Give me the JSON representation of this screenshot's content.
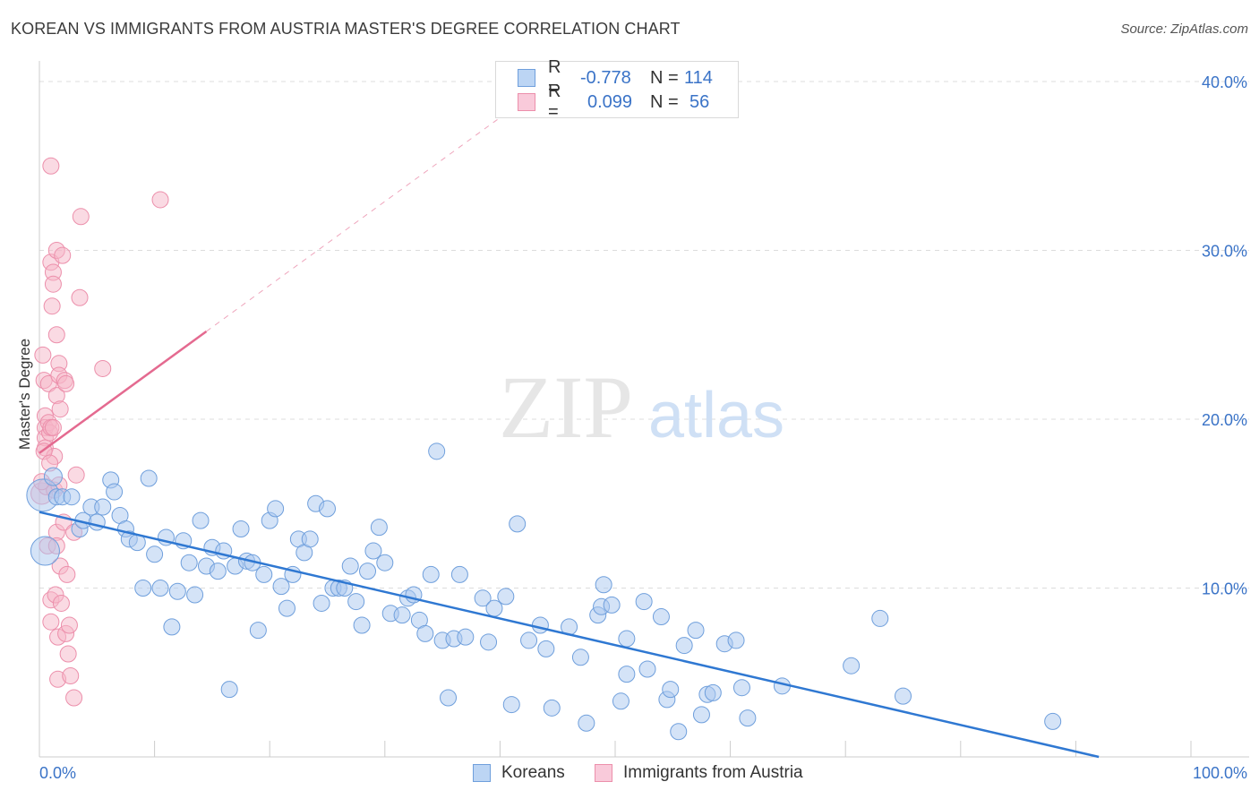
{
  "title": "KOREAN VS IMMIGRANTS FROM AUSTRIA MASTER'S DEGREE CORRELATION CHART",
  "source": "Source: ZipAtlas.com",
  "watermark": {
    "zip": "ZIP",
    "atlas": "atlas"
  },
  "colors": {
    "blue_fill": "#a9c8f0",
    "blue_stroke": "#6f9fdc",
    "blue_line": "#2f78d2",
    "pink_fill": "#f5b6c8",
    "pink_stroke": "#ec8fab",
    "pink_line": "#e46a90",
    "axis_text": "#3a73c7",
    "grid": "#dcdcdc"
  },
  "legend": {
    "rows": [
      {
        "series": "blue",
        "r_label": "R =",
        "r_value": "-0.778",
        "n_label": "N =",
        "n_value": "114"
      },
      {
        "series": "pink",
        "r_label": "R =",
        "r_value": "0.099",
        "n_label": "N =",
        "n_value": "56"
      }
    ]
  },
  "bottom_legend": [
    {
      "series": "blue",
      "label": "Koreans"
    },
    {
      "series": "pink",
      "label": "Immigrants from Austria"
    }
  ],
  "chart_data": {
    "type": "scatter",
    "xlabel": "",
    "ylabel": "Master's Degree",
    "xlim": [
      0,
      100
    ],
    "ylim": [
      0,
      40
    ],
    "x_tick_labels": [
      "0.0%",
      "100.0%"
    ],
    "y_ticks": [
      10,
      20,
      30,
      40
    ],
    "y_tick_labels": [
      "10.0%",
      "20.0%",
      "30.0%",
      "40.0%"
    ],
    "grid": true,
    "series": [
      {
        "name": "Koreans",
        "color": "#a9c8f0",
        "trend": {
          "x1": 0,
          "y1": 14.5,
          "x2": 92,
          "y2": 0.0,
          "style": "solid"
        },
        "points": [
          [
            0.3,
            15.5,
            18
          ],
          [
            0.5,
            12.2,
            16
          ],
          [
            1.2,
            16.6,
            10
          ],
          [
            1.5,
            15.4,
            9
          ],
          [
            2.0,
            15.4,
            9
          ],
          [
            2.8,
            15.4,
            9
          ],
          [
            3.5,
            13.5,
            9
          ],
          [
            3.8,
            14.0,
            9
          ],
          [
            4.5,
            14.8,
            9
          ],
          [
            5.0,
            13.9,
            9
          ],
          [
            5.5,
            14.8,
            9
          ],
          [
            6.2,
            16.4,
            9
          ],
          [
            6.5,
            15.7,
            9
          ],
          [
            7.0,
            14.3,
            9
          ],
          [
            7.5,
            13.5,
            9
          ],
          [
            7.8,
            12.9,
            9
          ],
          [
            8.5,
            12.7,
            9
          ],
          [
            9.0,
            10.0,
            9
          ],
          [
            9.5,
            16.5,
            9
          ],
          [
            10.0,
            12.0,
            9
          ],
          [
            10.5,
            10.0,
            9
          ],
          [
            11.0,
            13.0,
            9
          ],
          [
            11.5,
            7.7,
            9
          ],
          [
            12.0,
            9.8,
            9
          ],
          [
            12.5,
            12.8,
            9
          ],
          [
            13.0,
            11.5,
            9
          ],
          [
            13.5,
            9.6,
            9
          ],
          [
            14.0,
            14.0,
            9
          ],
          [
            14.5,
            11.3,
            9
          ],
          [
            15.0,
            12.4,
            9
          ],
          [
            15.5,
            11.0,
            9
          ],
          [
            16.0,
            12.2,
            9
          ],
          [
            16.5,
            4.0,
            9
          ],
          [
            17.0,
            11.3,
            9
          ],
          [
            17.5,
            13.5,
            9
          ],
          [
            18.0,
            11.6,
            9
          ],
          [
            18.5,
            11.5,
            9
          ],
          [
            19.0,
            7.5,
            9
          ],
          [
            19.5,
            10.8,
            9
          ],
          [
            20.0,
            14.0,
            9
          ],
          [
            20.5,
            14.7,
            9
          ],
          [
            21.0,
            10.1,
            9
          ],
          [
            21.5,
            8.8,
            9
          ],
          [
            22.0,
            10.8,
            9
          ],
          [
            22.5,
            12.9,
            9
          ],
          [
            23.0,
            12.1,
            9
          ],
          [
            23.5,
            12.9,
            9
          ],
          [
            24.0,
            15.0,
            9
          ],
          [
            24.5,
            9.1,
            9
          ],
          [
            25.0,
            14.7,
            9
          ],
          [
            25.5,
            10.0,
            9
          ],
          [
            26.0,
            10.0,
            9
          ],
          [
            26.5,
            10.0,
            9
          ],
          [
            27.0,
            11.3,
            9
          ],
          [
            27.5,
            9.2,
            9
          ],
          [
            28.0,
            7.8,
            9
          ],
          [
            28.5,
            11.0,
            9
          ],
          [
            29.0,
            12.2,
            9
          ],
          [
            29.5,
            13.6,
            9
          ],
          [
            30.0,
            11.5,
            9
          ],
          [
            30.5,
            8.5,
            9
          ],
          [
            31.5,
            8.4,
            9
          ],
          [
            32.0,
            9.4,
            9
          ],
          [
            32.5,
            9.6,
            9
          ],
          [
            33.0,
            8.1,
            9
          ],
          [
            33.5,
            7.3,
            9
          ],
          [
            34.0,
            10.8,
            9
          ],
          [
            34.5,
            18.1,
            9
          ],
          [
            35.0,
            6.9,
            9
          ],
          [
            35.5,
            3.5,
            9
          ],
          [
            36.0,
            7.0,
            9
          ],
          [
            36.5,
            10.8,
            9
          ],
          [
            37.0,
            7.1,
            9
          ],
          [
            38.5,
            9.4,
            9
          ],
          [
            39.0,
            6.8,
            9
          ],
          [
            39.5,
            8.8,
            9
          ],
          [
            40.5,
            9.5,
            9
          ],
          [
            41.0,
            3.1,
            9
          ],
          [
            41.5,
            13.8,
            9
          ],
          [
            42.5,
            6.9,
            9
          ],
          [
            43.5,
            7.8,
            9
          ],
          [
            44.0,
            6.4,
            9
          ],
          [
            44.5,
            2.9,
            9
          ],
          [
            46.0,
            7.7,
            9
          ],
          [
            47.0,
            5.9,
            9
          ],
          [
            47.5,
            2.0,
            9
          ],
          [
            48.5,
            8.4,
            9
          ],
          [
            48.8,
            8.9,
            9
          ],
          [
            49.0,
            10.2,
            9
          ],
          [
            49.7,
            9.0,
            9
          ],
          [
            50.5,
            3.3,
            9
          ],
          [
            51.0,
            7.0,
            9
          ],
          [
            51.0,
            4.9,
            9
          ],
          [
            52.5,
            9.2,
            9
          ],
          [
            52.8,
            5.2,
            9
          ],
          [
            54.0,
            8.3,
            9
          ],
          [
            54.5,
            3.4,
            9
          ],
          [
            54.8,
            4.0,
            9
          ],
          [
            55.5,
            1.5,
            9
          ],
          [
            56.0,
            6.6,
            9
          ],
          [
            57.0,
            7.5,
            9
          ],
          [
            57.5,
            2.5,
            9
          ],
          [
            58.0,
            3.7,
            9
          ],
          [
            58.5,
            3.8,
            9
          ],
          [
            59.5,
            6.7,
            9
          ],
          [
            60.5,
            6.9,
            9
          ],
          [
            61.0,
            4.1,
            9
          ],
          [
            61.5,
            2.3,
            9
          ],
          [
            64.5,
            4.2,
            9
          ],
          [
            70.5,
            5.4,
            9
          ],
          [
            73.0,
            8.2,
            9
          ],
          [
            75.0,
            3.6,
            9
          ],
          [
            88.0,
            2.1,
            9
          ]
        ]
      },
      {
        "name": "Immigrants from Austria",
        "color": "#f5b6c8",
        "trend": {
          "x1": 0,
          "y1": 18.0,
          "x2": 14.5,
          "y2": 25.2,
          "style": "solid",
          "extend_to_x": 40,
          "extend_style": "dashed"
        },
        "points": [
          [
            0.2,
            15.6,
            12
          ],
          [
            0.3,
            23.8,
            9
          ],
          [
            0.4,
            22.3,
            9
          ],
          [
            0.5,
            20.2,
            9
          ],
          [
            0.5,
            19.5,
            9
          ],
          [
            0.5,
            18.9,
            9
          ],
          [
            0.5,
            18.3,
            9
          ],
          [
            0.6,
            16.0,
            9
          ],
          [
            0.7,
            12.5,
            9
          ],
          [
            0.8,
            22.1,
            9
          ],
          [
            0.8,
            19.8,
            9
          ],
          [
            0.9,
            19.2,
            9
          ],
          [
            1.0,
            35.0,
            9
          ],
          [
            1.0,
            29.3,
            9
          ],
          [
            1.0,
            9.3,
            9
          ],
          [
            1.0,
            8.0,
            9
          ],
          [
            1.0,
            19.5,
            9
          ],
          [
            1.1,
            26.7,
            9
          ],
          [
            1.2,
            28.7,
            9
          ],
          [
            1.2,
            28.0,
            9
          ],
          [
            1.2,
            19.5,
            9
          ],
          [
            1.3,
            17.8,
            9
          ],
          [
            1.3,
            15.8,
            9
          ],
          [
            1.4,
            9.6,
            9
          ],
          [
            1.5,
            30.0,
            9
          ],
          [
            1.5,
            25.0,
            9
          ],
          [
            1.5,
            21.4,
            9
          ],
          [
            1.5,
            13.3,
            9
          ],
          [
            1.5,
            12.5,
            9
          ],
          [
            1.6,
            7.1,
            9
          ],
          [
            1.6,
            4.6,
            9
          ],
          [
            1.7,
            23.3,
            9
          ],
          [
            1.7,
            22.6,
            9
          ],
          [
            1.7,
            16.1,
            9
          ],
          [
            1.8,
            20.6,
            9
          ],
          [
            1.8,
            11.3,
            9
          ],
          [
            1.9,
            9.1,
            9
          ],
          [
            2.0,
            29.7,
            9
          ],
          [
            2.1,
            13.9,
            9
          ],
          [
            2.2,
            22.3,
            9
          ],
          [
            2.3,
            22.1,
            9
          ],
          [
            2.3,
            7.3,
            9
          ],
          [
            2.4,
            10.8,
            9
          ],
          [
            2.5,
            6.1,
            9
          ],
          [
            2.6,
            7.8,
            9
          ],
          [
            2.7,
            4.8,
            9
          ],
          [
            3.0,
            13.3,
            9
          ],
          [
            3.0,
            3.5,
            9
          ],
          [
            3.2,
            16.7,
            9
          ],
          [
            3.5,
            27.2,
            9
          ],
          [
            3.6,
            32.0,
            9
          ],
          [
            5.5,
            23.0,
            9
          ],
          [
            10.5,
            33.0,
            9
          ],
          [
            0.2,
            16.3,
            9
          ],
          [
            0.4,
            18.1,
            9
          ],
          [
            0.9,
            17.4,
            9
          ]
        ]
      }
    ]
  }
}
